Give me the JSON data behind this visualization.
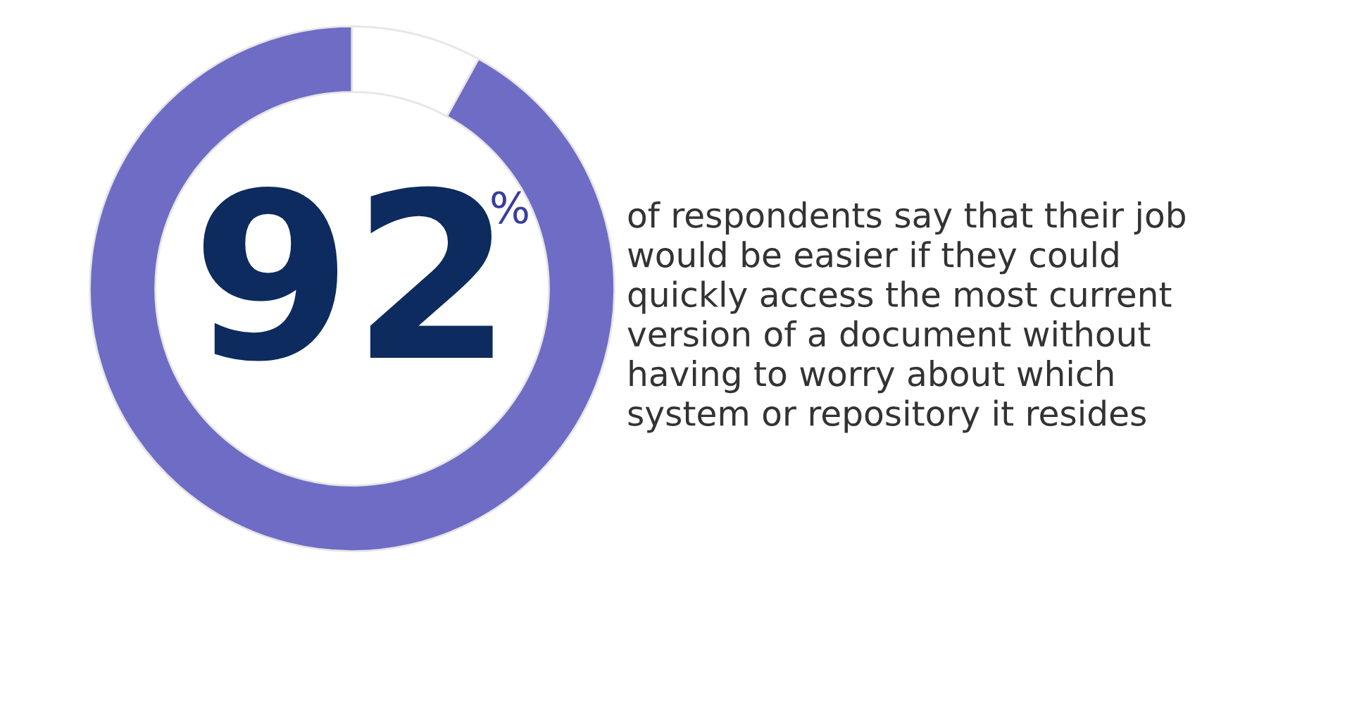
{
  "chart_data": {
    "type": "donut",
    "categories": [
      null,
      null
    ],
    "values": [
      92,
      8
    ],
    "colors": [
      "#6f6cc6",
      "#ffffff"
    ],
    "value_labels": [
      "92",
      null
    ],
    "annotations": [
      "%",
      "of respondents say that their job\nwould be easier if they could\nquickly access the most current\nversion of a document without\nhaving to worry about which\nsystem or repository it resides"
    ]
  }
}
